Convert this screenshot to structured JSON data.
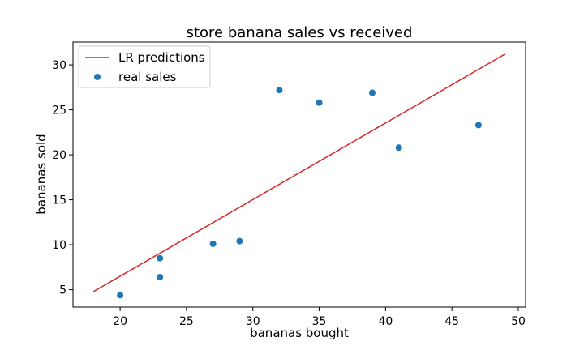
{
  "chart_data": {
    "type": "scatter",
    "title": "store banana sales vs received",
    "xlabel": "bananas bought",
    "ylabel": "bananas sold",
    "xlim": [
      16.45,
      50.55
    ],
    "ylim": [
      3.07,
      32.53
    ],
    "xticks": [
      20,
      25,
      30,
      35,
      40,
      45,
      50
    ],
    "yticks": [
      5,
      10,
      15,
      20,
      25,
      30
    ],
    "grid": false,
    "legend_position": "top-left",
    "series": [
      {
        "name": "LR predictions",
        "kind": "line",
        "color": "#d62728",
        "x": [
          18,
          49
        ],
        "y": [
          4.8,
          31.2
        ]
      },
      {
        "name": "real sales",
        "kind": "scatter",
        "color": "#1f77b4",
        "x": [
          20,
          23,
          23,
          27,
          29,
          32,
          35,
          39,
          41,
          47
        ],
        "y": [
          4.4,
          8.5,
          6.4,
          10.1,
          10.4,
          27.2,
          25.8,
          26.9,
          20.8,
          23.3
        ]
      }
    ]
  }
}
